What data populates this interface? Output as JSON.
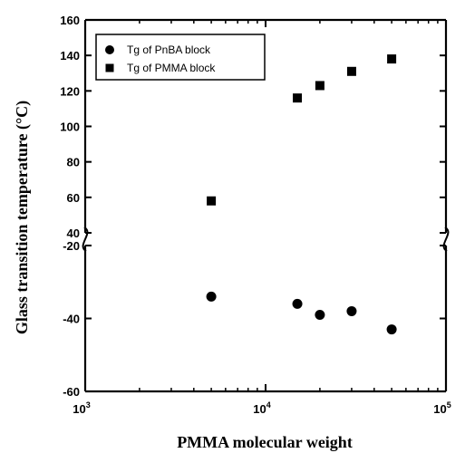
{
  "chart_data": {
    "type": "scatter",
    "xlabel": "PMMA molecular weight",
    "ylabel": "Glass transition temperature (°C)",
    "x_scale": "log",
    "xlim": [
      1000,
      100000
    ],
    "x_ticks": [
      {
        "value": 1000,
        "base": "10",
        "exp": "3"
      },
      {
        "value": 10000,
        "base": "10",
        "exp": "4"
      },
      {
        "value": 100000,
        "base": "10",
        "exp": "5"
      }
    ],
    "y_axis_broken": true,
    "y_upper": {
      "range": [
        40,
        160
      ],
      "ticks": [
        40,
        60,
        80,
        100,
        120,
        140,
        160
      ]
    },
    "y_lower": {
      "range": [
        -60,
        -20
      ],
      "ticks": [
        -60,
        -40,
        -20
      ]
    },
    "legend_position": "top-left",
    "grid": false,
    "series": [
      {
        "name": "Tg of PnBA block",
        "marker": "circle",
        "color": "#000000",
        "points": [
          {
            "x": 5000,
            "y": -34
          },
          {
            "x": 15000,
            "y": -36
          },
          {
            "x": 20000,
            "y": -39
          },
          {
            "x": 30000,
            "y": -38
          },
          {
            "x": 50000,
            "y": -43
          }
        ]
      },
      {
        "name": "Tg of PMMA block",
        "marker": "square",
        "color": "#000000",
        "points": [
          {
            "x": 5000,
            "y": 58
          },
          {
            "x": 15000,
            "y": 116
          },
          {
            "x": 20000,
            "y": 123
          },
          {
            "x": 30000,
            "y": 131
          },
          {
            "x": 50000,
            "y": 138
          }
        ]
      }
    ]
  }
}
